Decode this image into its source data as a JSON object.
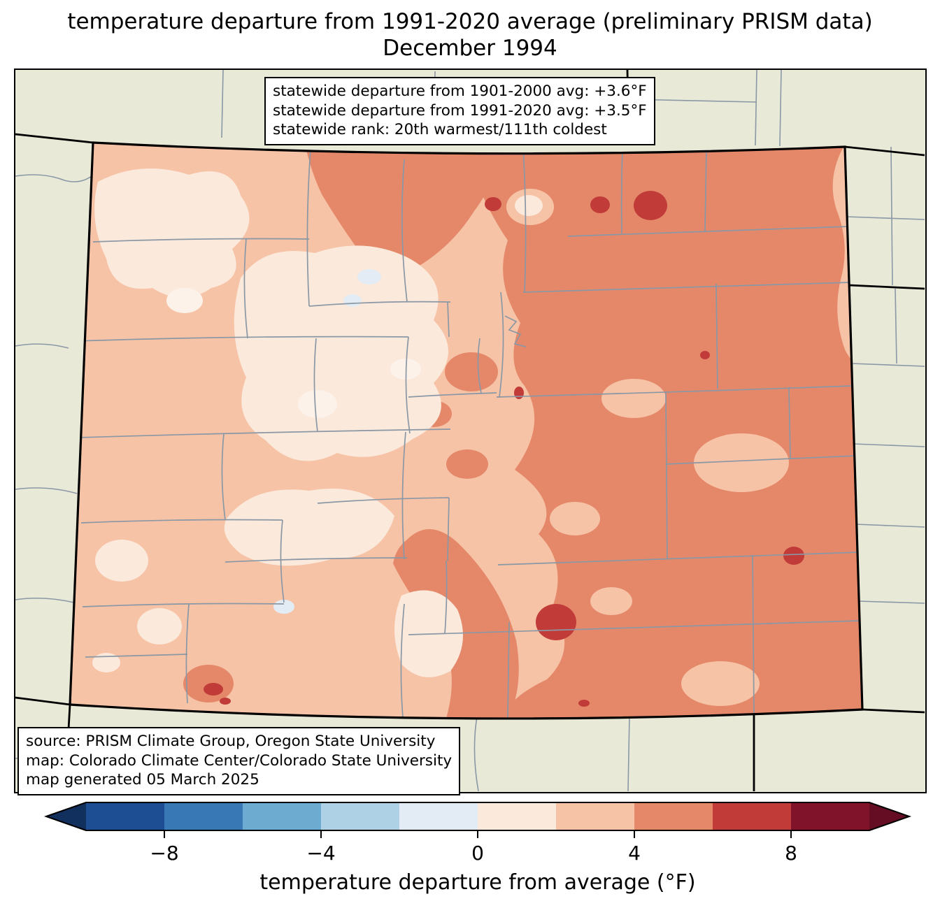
{
  "title": {
    "line1": "temperature departure from 1991-2020 average (preliminary PRISM data)",
    "line2": "December 1994"
  },
  "stats_box": {
    "lines": [
      "statewide departure from 1901-2000 avg: +3.6°F",
      "statewide departure from 1991-2020 avg: +3.5°F",
      "statewide rank: 20th warmest/111th coldest"
    ]
  },
  "source_box": {
    "lines": [
      "source: PRISM Climate Group, Oregon State University",
      "map: Colorado Climate Center/Colorado State University",
      "map generated 05 March 2025"
    ]
  },
  "colorbar": {
    "label": "temperature departure from average (°F)",
    "range": [
      -10,
      10
    ],
    "under_color": "#12305e",
    "over_color": "#650d23",
    "segments": [
      {
        "from": -10,
        "to": -8,
        "color": "#1d4e94"
      },
      {
        "from": -8,
        "to": -6,
        "color": "#3878b5"
      },
      {
        "from": -6,
        "to": -4,
        "color": "#6dabd0"
      },
      {
        "from": -4,
        "to": -2,
        "color": "#aed1e6"
      },
      {
        "from": -2,
        "to": 0,
        "color": "#e3ecf4"
      },
      {
        "from": 0,
        "to": 2,
        "color": "#fbe9dc"
      },
      {
        "from": 2,
        "to": 4,
        "color": "#f7c3a6"
      },
      {
        "from": 4,
        "to": 6,
        "color": "#e5886a"
      },
      {
        "from": 6,
        "to": 8,
        "color": "#c13b38"
      },
      {
        "from": 8,
        "to": 10,
        "color": "#801329"
      }
    ],
    "ticks": [
      {
        "value": -8,
        "label": "−8"
      },
      {
        "value": -4,
        "label": "−4"
      },
      {
        "value": 0,
        "label": "0"
      },
      {
        "value": 4,
        "label": "4"
      },
      {
        "value": 8,
        "label": "8"
      }
    ]
  },
  "map": {
    "region": "Colorado",
    "projection_note": "state map with county boundaries"
  },
  "colors": {
    "land": "#e9e9d8",
    "state_line": "#000000",
    "county_line": "#8a97a5",
    "seg5": "#e3ecf4",
    "seg6": "#fbe9dc",
    "seg7": "#f7c3a6",
    "seg8": "#e5886a",
    "seg9": "#c13b38",
    "near_white": "#fdf2ea"
  }
}
